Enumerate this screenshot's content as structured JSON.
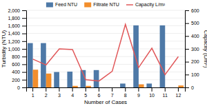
{
  "chart_data": {
    "type": "bar",
    "categories": [
      1,
      2,
      3,
      4,
      5,
      6,
      7,
      8,
      9,
      10,
      11,
      12
    ],
    "xlabel": "Number of Cases",
    "ylabel": "Turbidity (NTU)",
    "y2label": "Capacity (L/m²)",
    "series": [
      {
        "name": "Feed NTU",
        "type": "bar",
        "values": [
          1150,
          1150,
          400,
          410,
          450,
          450,
          0,
          100,
          1610,
          100,
          1610,
          0
        ]
      },
      {
        "name": "Filtrate NTU",
        "type": "bar",
        "values": [
          460,
          360,
          0,
          40,
          40,
          0,
          0,
          0,
          80,
          0,
          0,
          50
        ]
      },
      {
        "name": "Capacity L/m²",
        "type": "line",
        "axis": "y2",
        "line_style": "solid",
        "values": [
          220,
          175,
          300,
          295,
          60,
          50,
          125,
          490,
          155,
          305,
          100,
          240
        ]
      }
    ],
    "ylim": [
      0,
      2000
    ],
    "yticks": [
      0,
      200,
      400,
      600,
      800,
      {
        "value": 1000,
        "label": "1,000"
      },
      {
        "value": 1200,
        "label": "1,200"
      },
      {
        "value": 1400,
        "label": "1,400"
      },
      {
        "value": 1600,
        "label": "1,600"
      },
      {
        "value": 1800,
        "label": "1,800"
      },
      {
        "value": 2000,
        "label": "2,000"
      }
    ],
    "y2lim": [
      0,
      600
    ],
    "y2ticks": [
      0,
      100,
      200,
      300,
      400,
      500,
      600
    ],
    "grid": true,
    "legend": "top"
  }
}
